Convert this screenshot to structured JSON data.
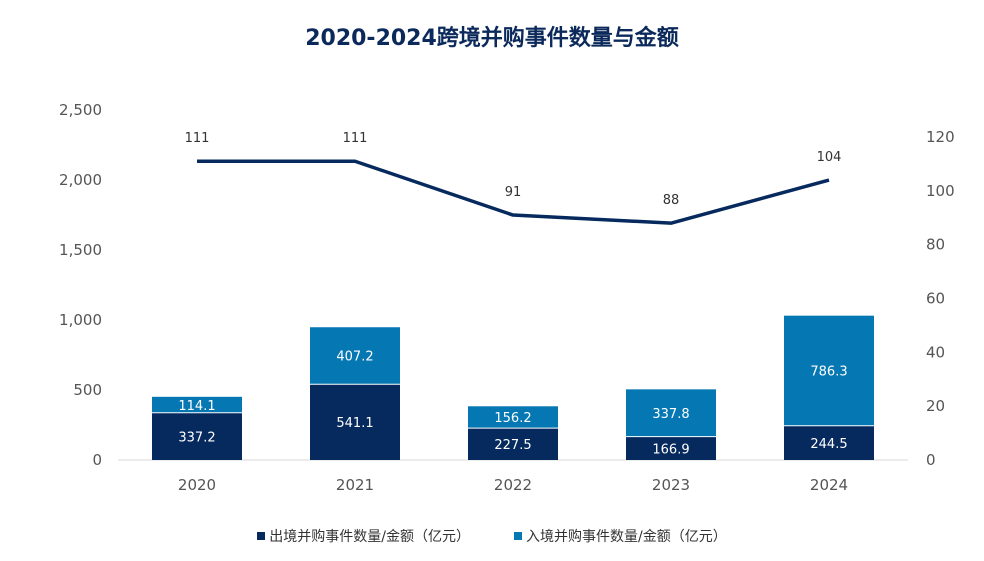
{
  "title": "2020-2024跨境并购事件数量与金额",
  "colors": {
    "outbound": "#062a5e",
    "inbound": "#0577b3",
    "line": "#062a5e",
    "axis": "#d9d9d9"
  },
  "legend": {
    "outbound": "出境并购事件数量/金额（亿元）",
    "inbound": "入境并购事件数量/金额（亿元）"
  },
  "chart_data": {
    "type": "bar",
    "stacked": true,
    "categories": [
      "2020",
      "2021",
      "2022",
      "2023",
      "2024"
    ],
    "series": [
      {
        "name": "出境并购事件数量/金额（亿元）",
        "axis": "left",
        "values": [
          337.2,
          541.1,
          227.5,
          166.9,
          244.5
        ]
      },
      {
        "name": "入境并购事件数量/金额（亿元）",
        "axis": "left",
        "values": [
          114.1,
          407.2,
          156.2,
          337.8,
          786.3
        ]
      },
      {
        "type": "line",
        "axis": "right",
        "values": [
          111,
          111,
          91,
          88,
          104
        ]
      }
    ],
    "y_left": {
      "ticks": [
        "0",
        "500",
        "1,000",
        "1,500",
        "2,000",
        "2,500"
      ],
      "lim": [
        0,
        2500
      ]
    },
    "y_right": {
      "ticks": [
        "0",
        "20",
        "40",
        "60",
        "80",
        "100",
        "120"
      ],
      "lim": [
        0,
        130
      ]
    },
    "grid": false,
    "legend_position": "bottom"
  }
}
